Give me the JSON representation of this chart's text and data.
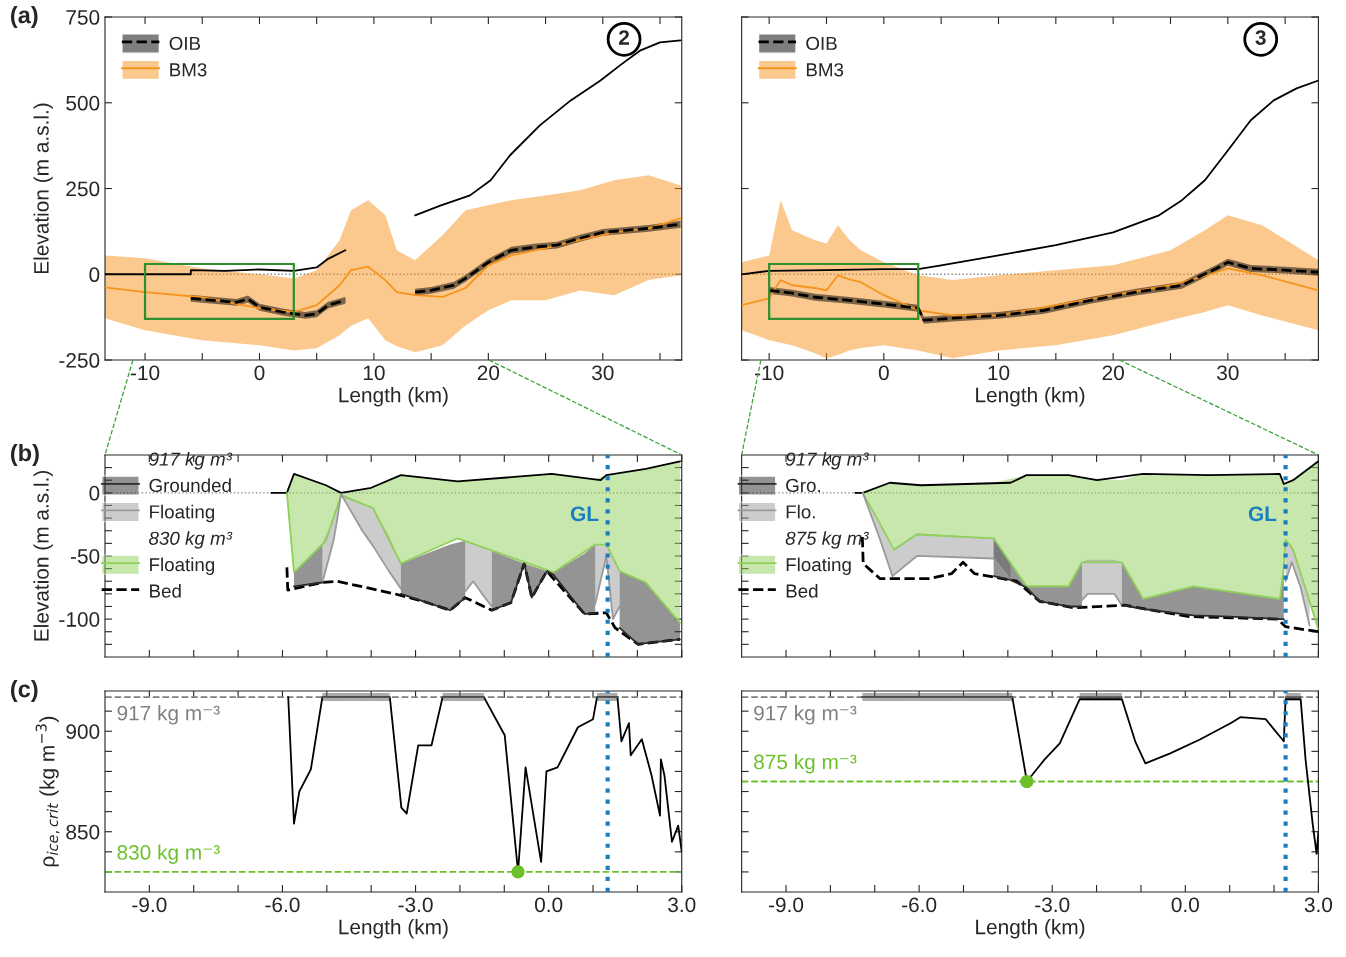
{
  "chart_data": [
    {
      "type": "line",
      "title": "(a)",
      "subtitle": "2",
      "xlabel": "Length (km)",
      "ylabel": "Elevation (m a.s.l.)",
      "xlim": [
        -13.5,
        36.9
      ],
      "ylim": [
        -250,
        750
      ],
      "xticks": [
        -10,
        {
          "value": -5,
          "label": null
        },
        0,
        {
          "value": 5,
          "label": null
        },
        10,
        {
          "value": 15,
          "label": null
        },
        20,
        {
          "value": 25,
          "label": null
        },
        30,
        {
          "value": 35,
          "label": null
        }
      ],
      "yticks": [
        -250,
        0,
        250,
        500,
        750
      ],
      "legend": "top left",
      "grid": false,
      "ref_lines": [
        {
          "axis": "y",
          "value": 0,
          "color": "#808080",
          "line_style": "dotted"
        }
      ],
      "series": [
        {
          "type": "line",
          "color": "#000000",
          "x": [
            -13.5,
            -6,
            -6,
            -3,
            0,
            3,
            5,
            6,
            7.5,
            10,
            13.6,
            15.8,
            18.4,
            20.2,
            21.9,
            24.5,
            27.2,
            29.8,
            31.5,
            33.3,
            35,
            36.8
          ],
          "values": [
            0,
            0,
            12,
            10,
            14,
            10,
            20,
            45,
            70,
            null,
            172,
            200,
            230,
            274,
            347,
            434,
            507,
            565,
            609,
            653,
            676,
            682
          ]
        },
        {
          "type": "line",
          "name": "OIB",
          "color": "#000000",
          "line_style": "dashed",
          "x": [
            -6,
            -4,
            -2,
            -1,
            0,
            2,
            4,
            5,
            6,
            7.5,
            10,
            13.6,
            15,
            17,
            18,
            20,
            22,
            24,
            26,
            28,
            30,
            32,
            34,
            36.8
          ],
          "values": [
            -70,
            -76,
            -82,
            -72,
            -96,
            -110,
            -120,
            -115,
            -90,
            -76,
            null,
            -52,
            -47,
            -32,
            -12,
            35,
            70,
            79,
            85,
            105,
            122,
            128,
            134,
            146
          ],
          "lower": [
            -80,
            -86,
            -92,
            -82,
            -106,
            -120,
            -130,
            -125,
            -100,
            -86,
            null,
            -62,
            -57,
            -42,
            -22,
            25,
            60,
            69,
            75,
            95,
            112,
            118,
            124,
            136
          ],
          "upper": [
            -60,
            -66,
            -72,
            -62,
            -86,
            -100,
            -110,
            -105,
            -80,
            -66,
            null,
            -42,
            -37,
            -22,
            -2,
            45,
            80,
            89,
            95,
            115,
            132,
            138,
            144,
            156
          ]
        },
        {
          "type": "line",
          "name": "BM3",
          "color": "#f7941d",
          "x": [
            -13.5,
            -10,
            -5,
            0,
            3,
            5,
            7,
            8,
            9.5,
            11,
            12,
            13.6,
            16,
            18,
            20,
            22,
            25,
            28,
            31,
            34,
            36.8
          ],
          "values": [
            -38,
            -52,
            -67,
            -99,
            -110,
            -90,
            -32,
            12,
            22,
            -17,
            -52,
            -61,
            -66,
            -40,
            26,
            55,
            76,
            100,
            122,
            134,
            163
          ],
          "upper": [
            55,
            47,
            17,
            0,
            -12,
            12,
            99,
            187,
            216,
            172,
            70,
            41,
            114,
            187,
            201,
            216,
            230,
            245,
            274,
            289,
            259
          ],
          "lower": [
            -128,
            -163,
            -192,
            -207,
            -222,
            -216,
            -178,
            -150,
            -128,
            -192,
            -210,
            -227,
            -207,
            -149,
            -105,
            -76,
            -76,
            -47,
            -61,
            -17,
            -3
          ]
        }
      ]
    },
    {
      "type": "line",
      "subtitle": "3",
      "xlabel": "Length (km)",
      "xlim": [
        -12.4,
        37.9
      ],
      "ylim": [
        -250,
        750
      ],
      "xticks": [
        -10,
        {
          "value": -5,
          "label": null
        },
        0,
        {
          "value": 5,
          "label": null
        },
        10,
        {
          "value": 15,
          "label": null
        },
        20,
        {
          "value": 25,
          "label": null
        },
        30,
        {
          "value": 35,
          "label": null
        }
      ],
      "yticks": [
        -250,
        0,
        250,
        500,
        750
      ],
      "tick_labels": "x",
      "legend": "top left",
      "grid": false,
      "ref_lines": [
        {
          "axis": "y",
          "value": 0,
          "color": "#808080",
          "line_style": "dotted"
        }
      ],
      "series": [
        {
          "type": "line",
          "color": "#000000",
          "x": [
            -12.4,
            -10,
            -5,
            0,
            3,
            5,
            10,
            15,
            20,
            24,
            26,
            28,
            30,
            32,
            34,
            36,
            37.9
          ],
          "values": [
            0,
            10,
            12,
            15,
            15,
            26,
            55,
            85,
            122,
            172,
            216,
            274,
            361,
            449,
            507,
            542,
            565
          ]
        },
        {
          "type": "line",
          "name": "OIB",
          "color": "#000000",
          "line_style": "dashed",
          "x": [
            -10,
            -8,
            -6,
            -3,
            0,
            3,
            3.5,
            6,
            10,
            14,
            18,
            22,
            26,
            29,
            30,
            32,
            35,
            37.9
          ],
          "values": [
            -47,
            -55,
            -67,
            -76,
            -87,
            -99,
            -134,
            -128,
            -120,
            -105,
            -76,
            -52,
            -32,
            17,
            35,
            17,
            12,
            6
          ],
          "lower": [
            -57,
            -65,
            -77,
            -86,
            -97,
            -109,
            -144,
            -138,
            -130,
            -115,
            -86,
            -62,
            -42,
            7,
            25,
            7,
            2,
            -4
          ],
          "upper": [
            -37,
            -45,
            -57,
            -66,
            -77,
            -89,
            -124,
            -118,
            -110,
            -95,
            -66,
            -42,
            -22,
            27,
            45,
            27,
            22,
            16
          ]
        },
        {
          "type": "line",
          "name": "BM3",
          "color": "#f7941d",
          "x": [
            -12.4,
            -10,
            -9,
            -8,
            -6,
            -5,
            -4,
            -3,
            -2,
            0,
            3,
            6,
            10,
            15,
            20,
            25,
            28,
            30,
            33,
            37.9
          ],
          "values": [
            -90,
            -70,
            -17,
            -32,
            -40,
            -47,
            -3,
            -15,
            -23,
            -61,
            -105,
            -120,
            -120,
            -90,
            -61,
            -32,
            -5,
            17,
            -3,
            -47
          ],
          "upper": [
            35,
            55,
            216,
            128,
            99,
            90,
            143,
            100,
            70,
            35,
            -3,
            -17,
            -3,
            12,
            26,
            70,
            128,
            172,
            143,
            41
          ],
          "lower": [
            -163,
            -192,
            -200,
            -207,
            -230,
            -245,
            -235,
            -222,
            -215,
            -207,
            -222,
            -245,
            -222,
            -207,
            -178,
            -134,
            -110,
            -90,
            -120,
            -163
          ]
        }
      ]
    },
    {
      "type": "line",
      "title": "(b)",
      "ylabel": "Elevation (m a.s.l.)",
      "xlim": [
        -10,
        3
      ],
      "ylim": [
        -130,
        30
      ],
      "xticks": [
        -9,
        -8,
        -7,
        -6,
        -5,
        -4,
        -3,
        -2,
        -1,
        0,
        1,
        2,
        3
      ],
      "yticks": [
        -100,
        -50,
        0,
        {
          "value": -120,
          "label": null
        },
        {
          "value": -110,
          "label": null
        },
        {
          "value": -90,
          "label": null
        },
        {
          "value": -80,
          "label": null
        },
        {
          "value": -70,
          "label": null
        },
        {
          "value": -60,
          "label": null
        },
        {
          "value": -40,
          "label": null
        },
        {
          "value": -30,
          "label": null
        },
        {
          "value": -20,
          "label": null
        },
        {
          "value": -10,
          "label": null
        },
        {
          "value": 10,
          "label": null
        },
        {
          "value": 20,
          "label": null
        }
      ],
      "tick_labels": "y",
      "legend": "top left",
      "grid": false,
      "annotations": [
        "917 kg m³",
        "830 kg m³"
      ],
      "ref_lines": [
        {
          "axis": "y",
          "value": 0,
          "color": "#808080",
          "line_style": "dotted"
        },
        {
          "axis": "x",
          "value": 1.33,
          "label": "GL",
          "color": "#1a7dc1",
          "line_style": "dotted"
        }
      ],
      "series": [
        {
          "type": "line",
          "name": "Grounded",
          "color": "#2a2a2a",
          "x": [
            -5.74,
            -5.1,
            null,
            -3.33,
            -2.82,
            -2.22,
            -1.88,
            null,
            -1.28,
            -0.85,
            -0.55,
            -0.38,
            -0.04,
            0.11,
            0.81,
            1.05,
            null,
            1.6,
            2.02,
            2.19,
            2.96
          ],
          "values": [
            -74,
            -71,
            null,
            -80,
            -86,
            -93,
            -83,
            null,
            -93,
            -87,
            -56,
            -83,
            -62,
            -65,
            -96,
            -95,
            null,
            -107,
            -120,
            -119,
            -116
          ],
          "lower": [
            -74,
            -71,
            null,
            -80,
            -86,
            -93,
            -83,
            null,
            -93,
            -87,
            -56,
            -83,
            -62,
            -65,
            -96,
            -95,
            null,
            -107,
            -120,
            -119,
            -116
          ],
          "upper": [
            -63,
            -40,
            null,
            -56,
            -49,
            -41,
            -38,
            null,
            -46,
            -52,
            -56,
            -58,
            -62,
            -63,
            -48,
            -41,
            null,
            -62,
            -68,
            -71,
            -103
          ]
        },
        {
          "type": "line",
          "name": "Floating",
          "color": "#9a9a9a",
          "x": [
            -5.1,
            -4.85,
            -4.77,
            -4.68,
            -4.2,
            -3.96,
            -3.6,
            -3.33,
            null,
            -1.88,
            -1.7,
            -1.5,
            -1.28,
            null,
            1.05,
            1.3,
            1.45,
            1.6
          ],
          "values": [
            -71,
            -38,
            -22,
            -1,
            -30,
            -42,
            -62,
            -76,
            null,
            -78,
            -70,
            -80,
            -90,
            null,
            -88,
            -50,
            -100,
            -90
          ],
          "lower": [
            -71,
            -38,
            -22,
            -1,
            -30,
            -42,
            -62,
            -76,
            null,
            -78,
            -70,
            -80,
            -90,
            null,
            -88,
            -50,
            -100,
            -90
          ],
          "upper": [
            -40,
            -20,
            -12,
            -1,
            -8,
            -12,
            -34,
            -56,
            null,
            -38,
            -41,
            -43,
            -46,
            null,
            -41,
            -41,
            -50,
            -62
          ]
        },
        {
          "type": "line",
          "name": "Floating",
          "color": "#8fcf5a",
          "x": [
            -5.9,
            -5.74,
            -5.02,
            -4.68,
            -3.96,
            -3.33,
            -2.05,
            0.11,
            1.05,
            1.3,
            1.6,
            2.19,
            2.96
          ],
          "values": [
            0,
            -63,
            -38,
            -2,
            -12,
            -56,
            -36,
            -63,
            -41,
            -41,
            -62,
            -71,
            -103
          ],
          "lower": [
            0,
            -63,
            -38,
            -2,
            -12,
            -56,
            -36,
            -63,
            -41,
            -41,
            -62,
            -71,
            -103
          ],
          "upper": [
            0,
            15,
            6,
            0,
            4,
            14,
            9,
            15,
            11,
            14,
            15,
            19,
            25
          ]
        },
        {
          "type": "line",
          "color": "#000000",
          "x": [
            -6.25,
            -5.9,
            -5.74,
            -5.02,
            -4.68,
            -4.0,
            -3.33,
            -2.05,
            0.07,
            1.17,
            1.3,
            2.19,
            2.96
          ],
          "values": [
            0,
            0,
            15,
            6,
            0,
            4,
            14,
            9,
            15,
            10,
            14,
            19,
            25
          ]
        },
        {
          "type": "line",
          "name": "Bed",
          "color": "#000000",
          "line_style": "dashed",
          "x": [
            -5.9,
            -5.88,
            -5.1,
            -4.77,
            -3.47,
            -2.82,
            -2.22,
            -1.88,
            -1.28,
            -0.85,
            -0.55,
            -0.38,
            -0.04,
            0.81,
            1.3,
            1.5,
            2.02,
            2.96
          ],
          "values": [
            -59,
            -77,
            -71,
            -70,
            -80,
            -86,
            -93,
            -83,
            -93,
            -87,
            -56,
            -83,
            -62,
            -96,
            -95,
            -107,
            -120,
            -116
          ]
        }
      ]
    },
    {
      "type": "line",
      "xlim": [
        -10,
        3
      ],
      "ylim": [
        -130,
        30
      ],
      "xticks": [
        -9,
        -8,
        -7,
        -6,
        -5,
        -4,
        -3,
        -2,
        -1,
        0,
        1,
        2,
        3
      ],
      "yticks": [
        -100,
        -50,
        0,
        {
          "value": -120,
          "label": null
        },
        {
          "value": -110,
          "label": null
        },
        {
          "value": -90,
          "label": null
        },
        {
          "value": -80,
          "label": null
        },
        {
          "value": -70,
          "label": null
        },
        {
          "value": -60,
          "label": null
        },
        {
          "value": -40,
          "label": null
        },
        {
          "value": -30,
          "label": null
        },
        {
          "value": -20,
          "label": null
        },
        {
          "value": -10,
          "label": null
        },
        {
          "value": 10,
          "label": null
        },
        {
          "value": 20,
          "label": null
        }
      ],
      "tick_labels": false,
      "legend": "top left",
      "grid": false,
      "annotations": [
        "917 kg m³",
        "875 kg m³"
      ],
      "ref_lines": [
        {
          "axis": "y",
          "value": 0,
          "color": "#808080",
          "line_style": "dotted"
        },
        {
          "axis": "x",
          "value": 2.26,
          "label": "GL",
          "color": "#1a7dc1",
          "line_style": "dotted"
        }
      ],
      "series": [
        {
          "type": "line",
          "name": "Gro.",
          "color": "#2a2a2a",
          "x": [
            -4.32,
            -3.94,
            -3.58,
            -3.28,
            -2.63,
            -2.33,
            null,
            -1.43,
            -0.95,
            0.18,
            1.0,
            2.13,
            2.22
          ],
          "values": [
            -66,
            -69,
            -75,
            -86,
            -90,
            -90,
            null,
            -89,
            -92,
            -97,
            -98,
            -100,
            -100
          ],
          "lower": [
            -66,
            -69,
            -75,
            -86,
            -90,
            -90,
            null,
            -89,
            -92,
            -97,
            -98,
            -100,
            -100
          ],
          "upper": [
            -36,
            -55,
            -74,
            -74,
            -74,
            -55,
            null,
            -55,
            -84,
            -74,
            -78,
            -84,
            -60
          ]
        },
        {
          "type": "line",
          "name": "Flo.",
          "color": "#9a9a9a",
          "x": [
            -7.27,
            -6.9,
            -6.6,
            -6.05,
            -4.32,
            -3.94,
            null,
            -2.33,
            -2.2,
            -1.6,
            -1.43,
            null,
            2.26,
            2.4,
            2.6,
            2.8
          ],
          "values": [
            0,
            -35,
            -66,
            -50,
            -52,
            -69,
            null,
            -85,
            -80,
            -80,
            -89,
            null,
            -70,
            -55,
            -75,
            -105
          ],
          "lower": [
            0,
            -35,
            -66,
            -50,
            -52,
            -69,
            null,
            -85,
            -80,
            -80,
            -89,
            null,
            -70,
            -55,
            -75,
            -105
          ],
          "upper": [
            0,
            -23,
            -45,
            -32,
            -36,
            -55,
            null,
            -55,
            -53,
            -53,
            -55,
            null,
            -37,
            -42,
            -64,
            -86
          ]
        },
        {
          "type": "line",
          "name": "Floating",
          "color": "#8fcf5a",
          "x": [
            -7.27,
            -6.92,
            -6.57,
            -6.05,
            -4.32,
            -3.58,
            -2.63,
            -2.33,
            -1.43,
            -0.95,
            0.18,
            2.13,
            2.22,
            2.26,
            2.43,
            3.0
          ],
          "values": [
            0,
            -22,
            -45,
            -33,
            -36,
            -74,
            -74,
            -55,
            -55,
            -84,
            -74,
            -84,
            -60,
            -37,
            -45,
            -108
          ],
          "lower": [
            0,
            -22,
            -45,
            -33,
            -36,
            -74,
            -74,
            -55,
            -55,
            -84,
            -74,
            -84,
            -60,
            -37,
            -45,
            -108
          ],
          "upper": [
            0,
            5,
            8,
            6,
            8,
            14,
            14,
            12,
            10,
            15,
            14,
            15,
            7,
            8,
            10,
            25
          ]
        },
        {
          "type": "line",
          "color": "#000000",
          "x": [
            -7.44,
            -7.27,
            -6.66,
            -5.96,
            -3.94,
            -3.58,
            -2.63,
            -1.99,
            -0.95,
            0.52,
            2.13,
            2.22,
            2.43,
            3.0
          ],
          "values": [
            0,
            0,
            8,
            6,
            8,
            14,
            14,
            10,
            15,
            14,
            15,
            7,
            10,
            25
          ]
        },
        {
          "type": "line",
          "name": "Bed",
          "color": "#000000",
          "line_style": "dashed",
          "x": [
            -7.28,
            -7.26,
            -6.88,
            -5.79,
            -5.27,
            -5.01,
            -4.75,
            -3.8,
            -3.28,
            -2.51,
            -1.38,
            0.09,
            2.08,
            2.26,
            3.0
          ],
          "values": [
            -35,
            -56,
            -68,
            -68,
            -64,
            -55,
            -64,
            -70,
            -86,
            -91,
            -89,
            -98,
            -100,
            -106,
            -110
          ]
        }
      ]
    },
    {
      "type": "line",
      "title": "(c)",
      "xlabel": "Length (km)",
      "ylabel": "ρ$_{ice,crit}$ (kg m$^{−3}$)",
      "xlim": [
        -10,
        3
      ],
      "ylim": [
        820,
        920
      ],
      "xticks": [
        {
          "value": -9,
          "label": "-9.0"
        },
        {
          "value": -6,
          "label": "-6.0"
        },
        {
          "value": -3,
          "label": "-3.0"
        },
        {
          "value": 0,
          "label": "0.0"
        },
        {
          "value": 3,
          "label": "3.0"
        },
        {
          "value": -8,
          "label": null
        },
        {
          "value": -7,
          "label": null
        },
        {
          "value": -5,
          "label": null
        },
        {
          "value": -4,
          "label": null
        },
        {
          "value": -2,
          "label": null
        },
        {
          "value": -1,
          "label": null
        },
        {
          "value": 1,
          "label": null
        },
        {
          "value": 2,
          "label": null
        }
      ],
      "yticks": [
        850,
        900,
        {
          "value": 830,
          "label": null
        },
        {
          "value": 840,
          "label": null
        },
        {
          "value": 860,
          "label": null
        },
        {
          "value": 870,
          "label": null
        },
        {
          "value": 880,
          "label": null
        },
        {
          "value": 890,
          "label": null
        },
        {
          "value": 910,
          "label": null
        }
      ],
      "grid": false,
      "ref_lines": [
        {
          "axis": "y",
          "value": 917,
          "label": "917 kg m⁻³",
          "color": "#808080",
          "line_style": "dashed"
        },
        {
          "axis": "y",
          "value": 830,
          "label": "830 kg m⁻³",
          "color": "#6cc12a",
          "line_style": "dashed"
        },
        {
          "axis": "x",
          "value": 1.33,
          "color": "#1a7dc1",
          "line_style": "dotted"
        }
      ],
      "series": [
        {
          "type": "line",
          "color": "#5a5a5a",
          "x": [
            -5.1,
            -3.58,
            null,
            -2.39,
            -1.46,
            null,
            1.09,
            1.55
          ],
          "values": [
            917,
            917,
            null,
            917,
            917,
            null,
            917,
            917
          ],
          "lower": [
            915,
            915,
            null,
            915,
            915,
            null,
            915,
            915
          ],
          "upper": [
            919,
            919,
            null,
            919,
            919,
            null,
            919,
            919
          ]
        },
        {
          "type": "line",
          "color": "#000000",
          "x": [
            -5.87,
            -5.74,
            -5.62,
            -5.36,
            -5.1,
            -3.58,
            -3.32,
            -3.2,
            -2.94,
            -2.64,
            -2.39,
            -1.46,
            -0.99,
            -0.69,
            -0.52,
            -0.17,
            -0.05,
            0.2,
            0.66,
            1.0,
            1.09,
            1.55,
            1.64,
            1.81,
            1.85,
            2.1,
            2.32,
            2.51,
            2.53,
            2.61,
            2.78,
            2.92,
            3.0
          ],
          "values": [
            917,
            854,
            870,
            881,
            917,
            917,
            862,
            859,
            893,
            893,
            917,
            917,
            898,
            830,
            882,
            835,
            880,
            882,
            902,
            906,
            917,
            917,
            895,
            904,
            888,
            896,
            878,
            858,
            886,
            878,
            845,
            853,
            840
          ]
        },
        {
          "type": "scatter",
          "color": "#6cc12a",
          "marker": "circle",
          "x": [
            -0.69
          ],
          "values": [
            830
          ]
        }
      ]
    },
    {
      "type": "line",
      "xlabel": "Length (km)",
      "xlim": [
        -10,
        3
      ],
      "ylim": [
        820,
        920
      ],
      "xticks": [
        {
          "value": -9,
          "label": "-9.0"
        },
        {
          "value": -6,
          "label": "-6.0"
        },
        {
          "value": -3,
          "label": "-3.0"
        },
        {
          "value": 0,
          "label": "0.0"
        },
        {
          "value": 3,
          "label": "3.0"
        },
        {
          "value": -8,
          "label": null
        },
        {
          "value": -7,
          "label": null
        },
        {
          "value": -5,
          "label": null
        },
        {
          "value": -4,
          "label": null
        },
        {
          "value": -2,
          "label": null
        },
        {
          "value": -1,
          "label": null
        },
        {
          "value": 1,
          "label": null
        },
        {
          "value": 2,
          "label": null
        }
      ],
      "yticks": [
        850,
        900,
        {
          "value": 830,
          "label": null
        },
        {
          "value": 840,
          "label": null
        },
        {
          "value": 860,
          "label": null
        },
        {
          "value": 870,
          "label": null
        },
        {
          "value": 880,
          "label": null
        },
        {
          "value": 890,
          "label": null
        },
        {
          "value": 910,
          "label": null
        }
      ],
      "tick_labels": "x",
      "grid": false,
      "ref_lines": [
        {
          "axis": "y",
          "value": 917,
          "label": "917 kg m⁻³",
          "color": "#808080",
          "line_style": "dashed"
        },
        {
          "axis": "y",
          "value": 875,
          "label": "875 kg m⁻³",
          "color": "#6cc12a",
          "line_style": "dashed"
        },
        {
          "axis": "x",
          "value": 2.26,
          "color": "#1a7dc1",
          "line_style": "dotted"
        }
      ],
      "series": [
        {
          "type": "line",
          "color": "#5a5a5a",
          "x": [
            -7.28,
            -3.9,
            null,
            -2.38,
            -1.43,
            null,
            2.26,
            2.6
          ],
          "values": [
            917,
            917,
            null,
            917,
            917,
            null,
            917,
            917
          ],
          "lower": [
            915,
            915,
            null,
            915,
            915,
            null,
            915,
            915
          ],
          "upper": [
            919,
            919,
            null,
            919,
            919,
            null,
            919,
            919
          ]
        },
        {
          "type": "line",
          "color": "#000000",
          "x": [
            -7.28,
            -3.9,
            -3.57,
            -3.17,
            -2.83,
            -2.38,
            -1.43,
            -1.13,
            -0.9,
            -0.34,
            0.34,
            1.02,
            1.24,
            1.81,
            2.22,
            2.26,
            2.6,
            2.71,
            2.87,
            2.96,
            3.0
          ],
          "values": [
            917,
            917,
            875,
            886,
            894,
            916,
            916,
            895,
            884,
            889,
            896,
            904,
            907,
            906,
            895,
            916,
            916,
            886,
            854,
            839,
            850
          ]
        },
        {
          "type": "scatter",
          "color": "#6cc12a",
          "marker": "circle",
          "x": [
            -3.57
          ],
          "values": [
            875
          ]
        }
      ]
    }
  ]
}
